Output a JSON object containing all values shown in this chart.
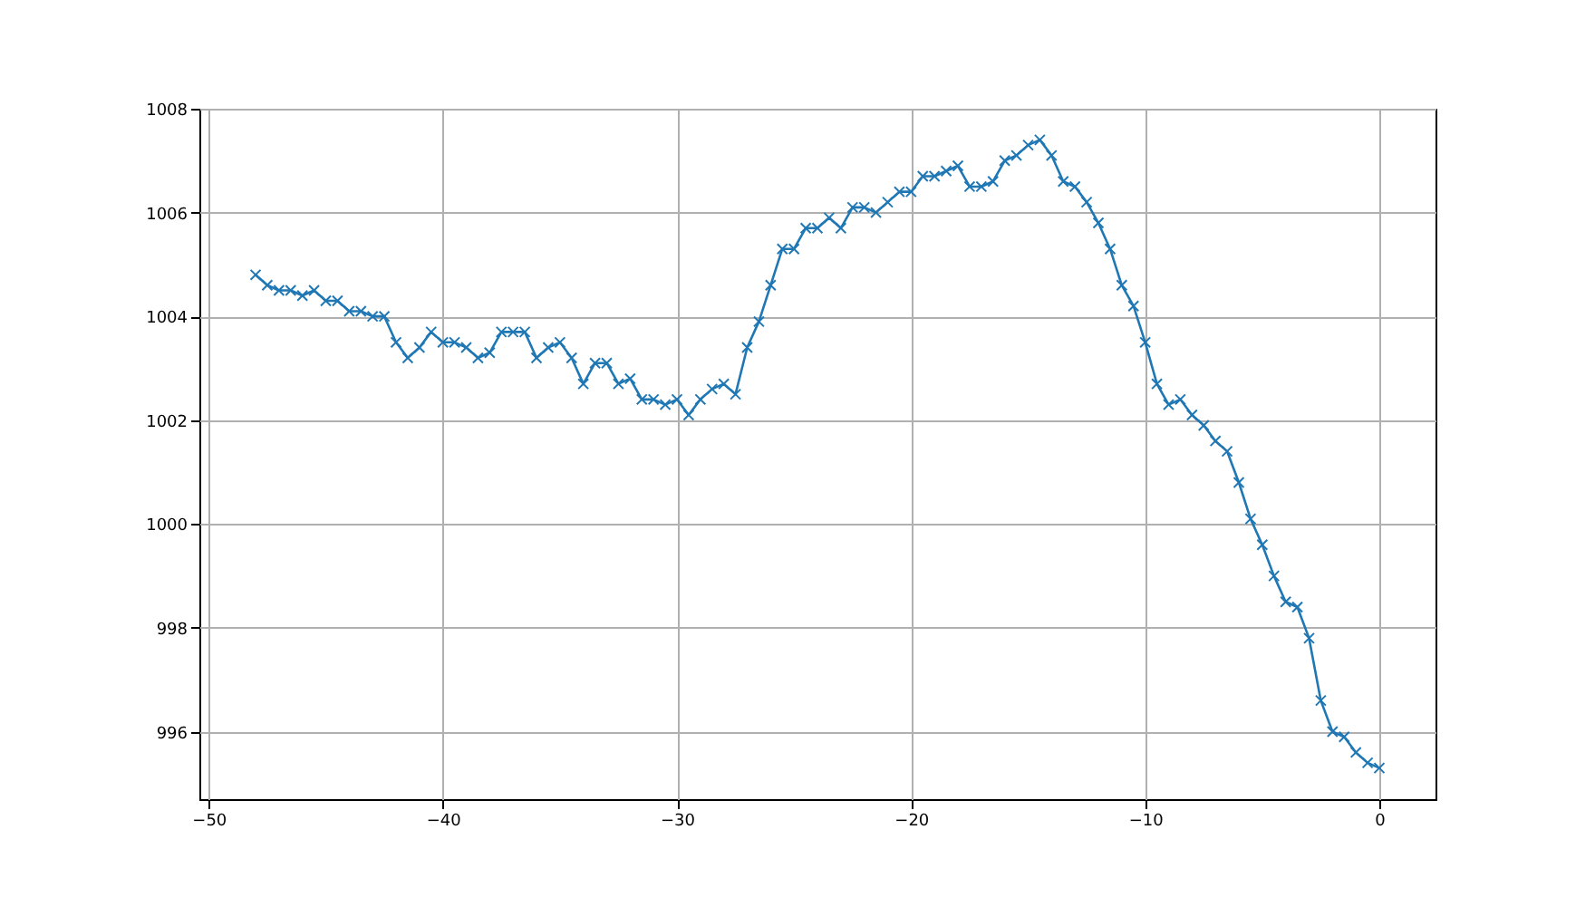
{
  "chart_data": {
    "type": "line",
    "x": [
      -48,
      -47.5,
      -47,
      -46.5,
      -46,
      -45.5,
      -45,
      -44.5,
      -44,
      -43.5,
      -43,
      -42.5,
      -42,
      -41.5,
      -41,
      -40.5,
      -40,
      -39.5,
      -39,
      -38.5,
      -38,
      -37.5,
      -37,
      -36.5,
      -36,
      -35.5,
      -35,
      -34.5,
      -34,
      -33.5,
      -33,
      -32.5,
      -32,
      -31.5,
      -31,
      -30.5,
      -30,
      -29.5,
      -29,
      -28.5,
      -28,
      -27.5,
      -27,
      -26.5,
      -26,
      -25.5,
      -25,
      -24.5,
      -24,
      -23.5,
      -23,
      -22.5,
      -22,
      -21.5,
      -21,
      -20.5,
      -20,
      -19.5,
      -19,
      -18.5,
      -18,
      -17.5,
      -17,
      -16.5,
      -16,
      -15.5,
      -15,
      -14.5,
      -14,
      -13.5,
      -13,
      -12.5,
      -12,
      -11.5,
      -11,
      -10.5,
      -10,
      -9.5,
      -9,
      -8.5,
      -8,
      -7.5,
      -7,
      -6.5,
      -6,
      -5.5,
      -5,
      -4.5,
      -4,
      -3.5,
      -3,
      -2.5,
      -2,
      -1.5,
      -1,
      -0.5,
      0
    ],
    "series": [
      {
        "color": "#1f77b4",
        "values": [
          1004.8,
          1004.6,
          1004.5,
          1004.5,
          1004.4,
          1004.5,
          1004.3,
          1004.3,
          1004.1,
          1004.1,
          1004.0,
          1004.0,
          1003.5,
          1003.2,
          1003.4,
          1003.7,
          1003.5,
          1003.5,
          1003.4,
          1003.2,
          1003.3,
          1003.7,
          1003.7,
          1003.7,
          1003.2,
          1003.4,
          1003.5,
          1003.2,
          1002.7,
          1003.1,
          1003.1,
          1002.7,
          1002.8,
          1002.4,
          1002.4,
          1002.3,
          1002.4,
          1002.1,
          1002.4,
          1002.6,
          1002.7,
          1002.5,
          1003.4,
          1003.9,
          1004.6,
          1005.3,
          1005.3,
          1005.7,
          1005.7,
          1005.9,
          1005.7,
          1006.1,
          1006.1,
          1006.0,
          1006.2,
          1006.4,
          1006.4,
          1006.7,
          1006.7,
          1006.8,
          1006.9,
          1006.5,
          1006.5,
          1006.6,
          1007.0,
          1007.1,
          1007.3,
          1007.4,
          1007.1,
          1006.6,
          1006.5,
          1006.2,
          1005.8,
          1005.3,
          1004.6,
          1004.2,
          1003.5,
          1002.7,
          1002.3,
          1002.4,
          1002.1,
          1001.9,
          1001.6,
          1001.4,
          1000.8,
          1000.1,
          999.6,
          999.0,
          998.5,
          998.4,
          997.8,
          996.6,
          996.0,
          995.9,
          995.6,
          995.4,
          995.3
        ]
      }
    ],
    "xlim": [
      -50.4,
      2.4
    ],
    "xticks": [
      -50,
      -40,
      -30,
      -20,
      -10,
      0
    ],
    "ylim": [
      994.7,
      1008
    ],
    "yticks": [
      996,
      998,
      1000,
      1002,
      1004,
      1006,
      1008
    ],
    "grid": true,
    "marker": "cross",
    "line_style": "solid"
  }
}
